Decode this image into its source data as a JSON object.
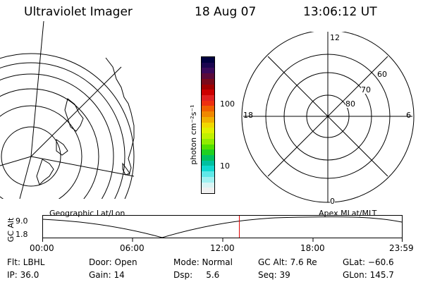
{
  "header": {
    "instrument": "Ultraviolet Imager",
    "date": "18 Aug 07",
    "time": "13:06:12 UT"
  },
  "colorbar": {
    "label": "photon cm⁻²s⁻¹",
    "tick_labels": [
      "100",
      "10"
    ],
    "colors": [
      "#000040",
      "#1a0550",
      "#3a0a5a",
      "#5a0a3a",
      "#7a0a1a",
      "#a00000",
      "#cc0000",
      "#e02020",
      "#ee3010",
      "#f06000",
      "#f08800",
      "#f0b000",
      "#f0d800",
      "#e0f000",
      "#c0f000",
      "#90ec00",
      "#50e000",
      "#20d020",
      "#00c060",
      "#00c0a0",
      "#10d8d0",
      "#60e8e8",
      "#a0f0f0",
      "#d8f4f4",
      "#f0f0f0"
    ]
  },
  "polar_plot": {
    "mlt_labels": {
      "top": "12",
      "left": "18",
      "right": "6",
      "bottom": "0"
    },
    "lat_labels": [
      "60",
      "70",
      "80"
    ]
  },
  "timeline": {
    "left_label": "Geographic Lat/Lon",
    "right_label": "Apex MLat/MLT",
    "axis_label": "GC Alt",
    "y_labels": [
      "9.0",
      "1.8"
    ],
    "x_ticks": [
      "00:00",
      "06:00",
      "12:00",
      "18:00",
      "23:59"
    ],
    "current_time_fraction": 0.547,
    "marker_color": "#e00000"
  },
  "status": [
    [
      "Flt: LBHL",
      "Door: Open",
      "Mode: Normal",
      "GC Alt: 7.6 Re",
      "GLat: −60.6"
    ],
    [
      "IP: 36.0",
      "Gain: 14",
      "Dsp:     5.6",
      "Seq: 39",
      "GLon: 145.7"
    ]
  ]
}
